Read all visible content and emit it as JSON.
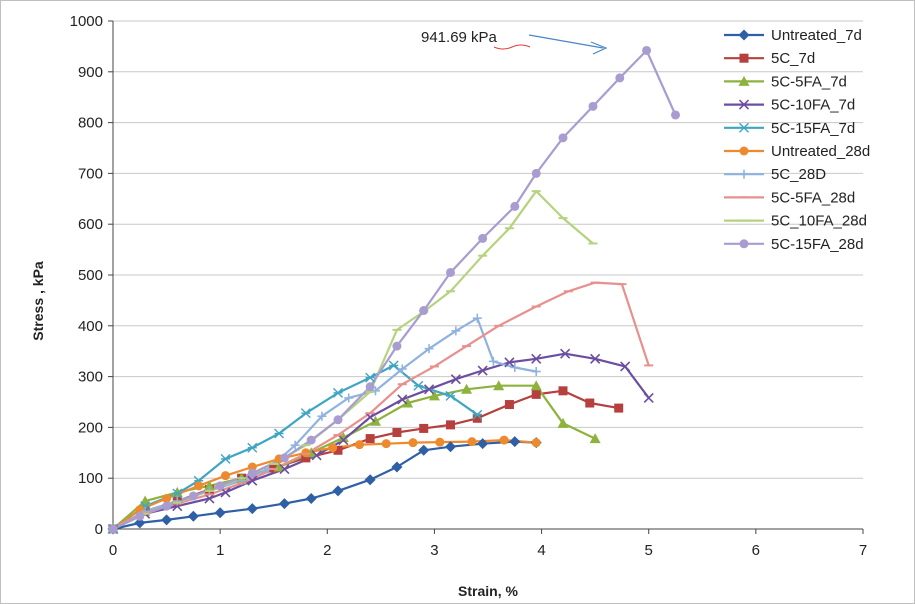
{
  "chart_data": {
    "type": "line",
    "xlabel": "Strain, %",
    "ylabel": "Stress , kPa",
    "xlim": [
      0,
      7
    ],
    "ylim": [
      0,
      1000
    ],
    "xticks": [
      0,
      1,
      2,
      3,
      4,
      5,
      6,
      7
    ],
    "yticks": [
      0,
      100,
      200,
      300,
      400,
      500,
      600,
      700,
      800,
      900,
      1000
    ],
    "grid": "horizontal",
    "legend": "right",
    "annotation": {
      "text": "941.69 kPa",
      "x": 4.73,
      "y": 941.69
    },
    "series": [
      {
        "name": "Untreated_7d",
        "color": "#2f5fa5",
        "marker": "diamond",
        "x": [
          0,
          0.25,
          0.5,
          0.75,
          1.0,
          1.3,
          1.6,
          1.85,
          2.1,
          2.4,
          2.65,
          2.9,
          3.15,
          3.45,
          3.75,
          3.95
        ],
        "y": [
          0,
          12,
          18,
          25,
          32,
          40,
          50,
          60,
          75,
          97,
          122,
          155,
          162,
          168,
          172,
          170
        ]
      },
      {
        "name": "5C_7d",
        "color": "#b5403e",
        "marker": "square",
        "x": [
          0,
          0.3,
          0.6,
          0.9,
          1.2,
          1.5,
          1.8,
          2.1,
          2.4,
          2.65,
          2.9,
          3.15,
          3.4,
          3.7,
          3.95,
          4.2,
          4.45,
          4.72
        ],
        "y": [
          0,
          35,
          55,
          78,
          100,
          120,
          140,
          155,
          178,
          190,
          198,
          205,
          218,
          245,
          265,
          272,
          248,
          238
        ]
      },
      {
        "name": "5C-5FA_7d",
        "color": "#8db33e",
        "marker": "triangle",
        "x": [
          0,
          0.3,
          0.6,
          0.9,
          1.2,
          1.55,
          1.85,
          2.15,
          2.45,
          2.75,
          3.0,
          3.3,
          3.6,
          3.95,
          4.2,
          4.5
        ],
        "y": [
          0,
          55,
          72,
          85,
          100,
          122,
          150,
          180,
          212,
          248,
          262,
          275,
          282,
          282,
          208,
          178
        ]
      },
      {
        "name": "5C-10FA_7d",
        "color": "#6b4ea0",
        "marker": "x",
        "x": [
          0,
          0.3,
          0.6,
          0.9,
          1.05,
          1.3,
          1.6,
          1.9,
          2.15,
          2.4,
          2.7,
          2.95,
          3.2,
          3.45,
          3.7,
          3.95,
          4.22,
          4.5,
          4.78,
          5.0
        ],
        "y": [
          0,
          30,
          45,
          60,
          72,
          95,
          118,
          145,
          175,
          220,
          255,
          275,
          295,
          312,
          328,
          335,
          345,
          335,
          320,
          258
        ]
      },
      {
        "name": "5C-15FA_7d",
        "color": "#3fa5c2",
        "marker": "asterisk",
        "x": [
          0,
          0.3,
          0.6,
          0.8,
          1.05,
          1.3,
          1.55,
          1.8,
          2.1,
          2.4,
          2.62,
          2.85,
          3.15,
          3.4
        ],
        "y": [
          0,
          45,
          70,
          95,
          138,
          160,
          188,
          228,
          268,
          298,
          322,
          282,
          262,
          225
        ]
      },
      {
        "name": "Untreated_28d",
        "color": "#ee8a2e",
        "marker": "circle",
        "x": [
          0,
          0.25,
          0.5,
          0.8,
          1.05,
          1.3,
          1.55,
          1.8,
          2.05,
          2.3,
          2.55,
          2.8,
          3.05,
          3.35,
          3.65,
          3.95
        ],
        "y": [
          0,
          38,
          60,
          85,
          105,
          122,
          138,
          150,
          160,
          166,
          168,
          170,
          171,
          172,
          175,
          170
        ]
      },
      {
        "name": "5C_28D",
        "color": "#8fb3de",
        "marker": "plus",
        "x": [
          0,
          0.3,
          0.6,
          0.9,
          1.2,
          1.45,
          1.7,
          1.95,
          2.2,
          2.45,
          2.7,
          2.95,
          3.2,
          3.4,
          3.55,
          3.75,
          3.95
        ],
        "y": [
          0,
          35,
          55,
          75,
          95,
          118,
          165,
          222,
          258,
          272,
          315,
          355,
          390,
          415,
          330,
          318,
          310
        ]
      },
      {
        "name": "5C-5FA_28d",
        "color": "#e8908e",
        "marker": "dash",
        "x": [
          0,
          0.3,
          0.6,
          0.9,
          1.2,
          1.5,
          1.8,
          2.1,
          2.4,
          2.7,
          3.0,
          3.3,
          3.6,
          3.95,
          4.25,
          4.5,
          4.75,
          5.0
        ],
        "y": [
          0,
          32,
          50,
          68,
          90,
          118,
          148,
          185,
          228,
          285,
          320,
          360,
          400,
          438,
          468,
          485,
          482,
          322
        ]
      },
      {
        "name": "5C_10FA_28d",
        "color": "#b5d37e",
        "marker": "dash",
        "x": [
          0,
          0.3,
          0.6,
          0.9,
          1.2,
          1.5,
          1.8,
          2.1,
          2.4,
          2.65,
          2.9,
          3.15,
          3.45,
          3.7,
          3.95,
          4.2,
          4.48
        ],
        "y": [
          0,
          30,
          52,
          75,
          100,
          128,
          165,
          215,
          270,
          392,
          428,
          468,
          538,
          592,
          665,
          612,
          562
        ]
      },
      {
        "name": "5C-15FA_28d",
        "color": "#a89cd1",
        "marker": "circle",
        "x": [
          0,
          0.25,
          0.5,
          0.75,
          1.0,
          1.3,
          1.6,
          1.85,
          2.1,
          2.4,
          2.65,
          2.9,
          3.15,
          3.45,
          3.75,
          3.95,
          4.2,
          4.48,
          4.73,
          4.98,
          5.25
        ],
        "y": [
          0,
          25,
          45,
          65,
          85,
          110,
          140,
          175,
          215,
          280,
          360,
          430,
          505,
          572,
          635,
          700,
          770,
          832,
          888,
          942,
          815
        ]
      }
    ]
  }
}
